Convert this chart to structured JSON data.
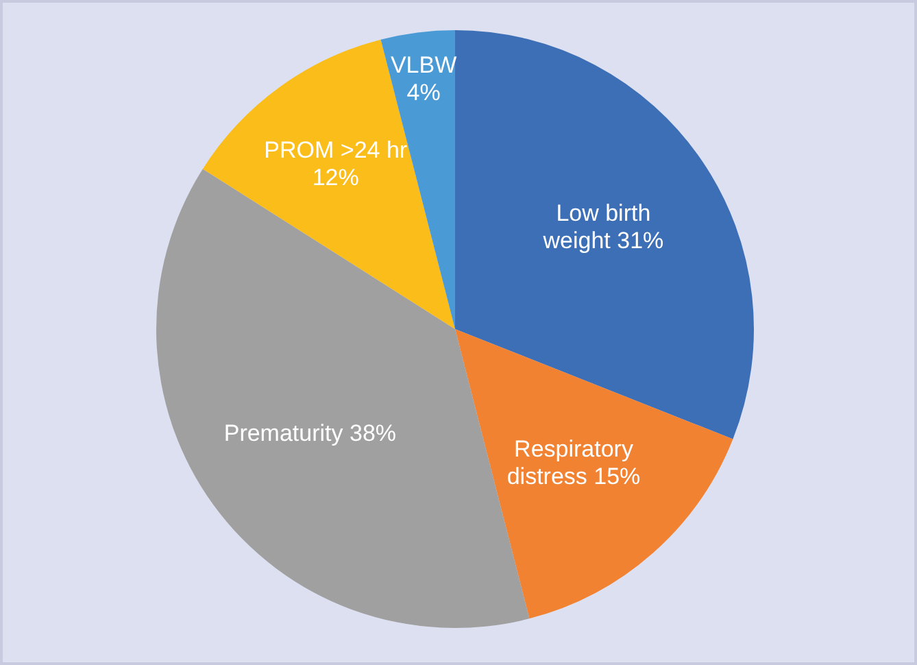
{
  "chart_data": {
    "type": "pie",
    "categories": [
      "Low birth weight",
      "Respiratory distress",
      "Prematurity",
      "PROM >24 hr",
      "VLBW"
    ],
    "values": [
      31,
      15,
      38,
      12,
      4
    ],
    "colors": [
      "#3d6fb6",
      "#f08232",
      "#a0a0a0",
      "#fbbd1a",
      "#4a9ad6"
    ],
    "value_labels": [
      "31%",
      "15%",
      "38%",
      "12%",
      "4%"
    ],
    "legend": false
  }
}
